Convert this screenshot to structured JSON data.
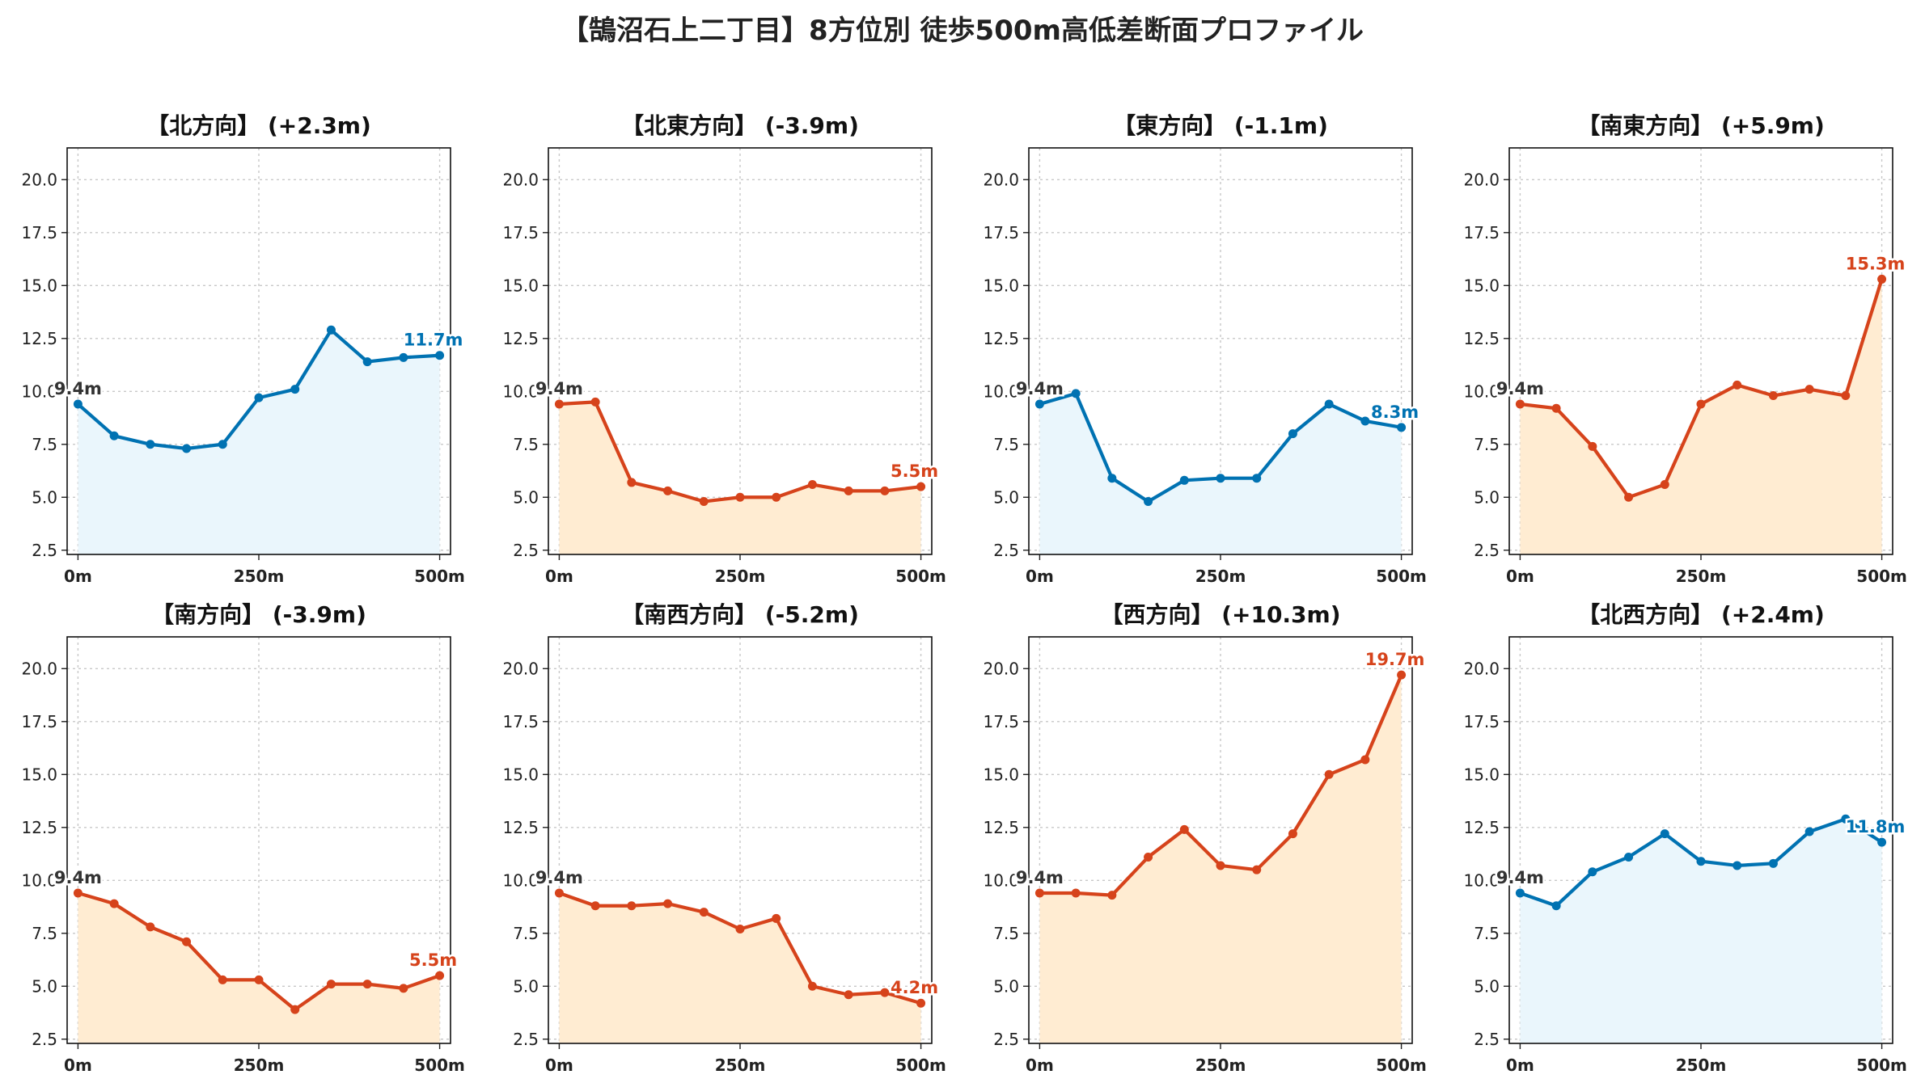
{
  "title": "【鵠沼石上二丁目】8方位別 徒歩500m高低差断面プロファイル",
  "colors": {
    "up_line": "#0072b2",
    "up_fill": "#eaf6fc",
    "down_line": "#d6431b",
    "down_fill": "#ffecd2",
    "start_label": "#333333",
    "grid": "#c8c8c8"
  },
  "chart_data": [
    {
      "type": "area",
      "title": "【北方向】 (+2.3m)",
      "trend": "up",
      "x": [
        0,
        50,
        100,
        150,
        200,
        250,
        300,
        350,
        400,
        450,
        500
      ],
      "y": [
        9.4,
        7.9,
        7.5,
        7.3,
        7.5,
        9.7,
        10.1,
        12.9,
        11.4,
        11.6,
        11.7
      ],
      "start_label": "9.4m",
      "end_label": "11.7m"
    },
    {
      "type": "area",
      "title": "【北東方向】 (-3.9m)",
      "trend": "down",
      "x": [
        0,
        50,
        100,
        150,
        200,
        250,
        300,
        350,
        400,
        450,
        500
      ],
      "y": [
        9.4,
        9.5,
        5.7,
        5.3,
        4.8,
        5.0,
        5.0,
        5.6,
        5.3,
        5.3,
        5.5
      ],
      "start_label": "9.4m",
      "end_label": "5.5m"
    },
    {
      "type": "area",
      "title": "【東方向】 (-1.1m)",
      "trend": "up",
      "x": [
        0,
        50,
        100,
        150,
        200,
        250,
        300,
        350,
        400,
        450,
        500
      ],
      "y": [
        9.4,
        9.9,
        5.9,
        4.8,
        5.8,
        5.9,
        5.9,
        8.0,
        9.4,
        8.6,
        8.3
      ],
      "start_label": "9.4m",
      "end_label": "8.3m"
    },
    {
      "type": "area",
      "title": "【南東方向】 (+5.9m)",
      "trend": "down",
      "x": [
        0,
        50,
        100,
        150,
        200,
        250,
        300,
        350,
        400,
        450,
        500
      ],
      "y": [
        9.4,
        9.2,
        7.4,
        5.0,
        5.6,
        9.4,
        10.3,
        9.8,
        10.1,
        9.8,
        15.3
      ],
      "start_label": "9.4m",
      "end_label": "15.3m"
    },
    {
      "type": "area",
      "title": "【南方向】 (-3.9m)",
      "trend": "down",
      "x": [
        0,
        50,
        100,
        150,
        200,
        250,
        300,
        350,
        400,
        450,
        500
      ],
      "y": [
        9.4,
        8.9,
        7.8,
        7.1,
        5.3,
        5.3,
        3.9,
        5.1,
        5.1,
        4.9,
        5.5
      ],
      "start_label": "9.4m",
      "end_label": "5.5m"
    },
    {
      "type": "area",
      "title": "【南西方向】 (-5.2m)",
      "trend": "down",
      "x": [
        0,
        50,
        100,
        150,
        200,
        250,
        300,
        350,
        400,
        450,
        500
      ],
      "y": [
        9.4,
        8.8,
        8.8,
        8.9,
        8.5,
        7.7,
        8.2,
        5.0,
        4.6,
        4.7,
        4.2
      ],
      "start_label": "9.4m",
      "end_label": "4.2m"
    },
    {
      "type": "area",
      "title": "【西方向】 (+10.3m)",
      "trend": "down",
      "x": [
        0,
        50,
        100,
        150,
        200,
        250,
        300,
        350,
        400,
        450,
        500
      ],
      "y": [
        9.4,
        9.4,
        9.3,
        11.1,
        12.4,
        10.7,
        10.5,
        12.2,
        15.0,
        15.7,
        19.7
      ],
      "start_label": "9.4m",
      "end_label": "19.7m"
    },
    {
      "type": "area",
      "title": "【北西方向】 (+2.4m)",
      "trend": "up",
      "x": [
        0,
        50,
        100,
        150,
        200,
        250,
        300,
        350,
        400,
        450,
        500
      ],
      "y": [
        9.4,
        8.8,
        10.4,
        11.1,
        12.2,
        10.9,
        10.7,
        10.8,
        12.3,
        12.9,
        11.8
      ],
      "start_label": "9.4m",
      "end_label": "11.8m"
    }
  ],
  "axes": {
    "ylim": [
      2.3,
      21.5
    ],
    "xlim": [
      -15,
      515
    ],
    "y_ticks": [
      "2.5",
      "5.0",
      "7.5",
      "10.0",
      "12.5",
      "15.0",
      "17.5",
      "20.0"
    ],
    "x_ticks": [
      "0m",
      "250m",
      "500m"
    ],
    "grid": true
  }
}
